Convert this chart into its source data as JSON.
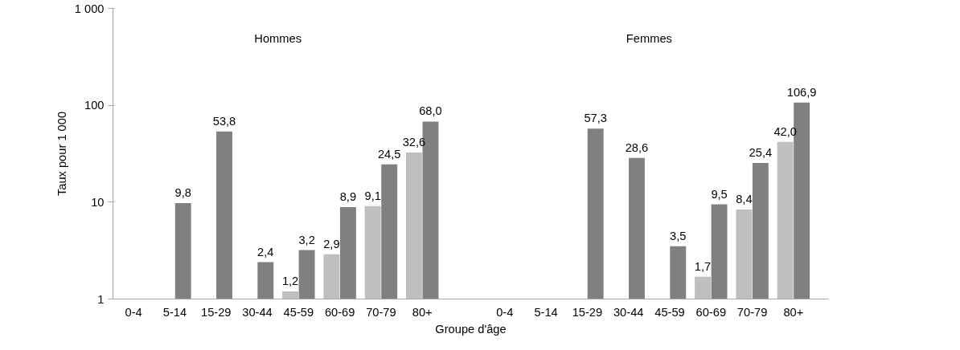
{
  "chart_data": {
    "type": "bar",
    "ylabel": "Taux pour 1 000",
    "xlabel": "Groupe d'âge",
    "categories": [
      "0-4",
      "5-14",
      "15-29",
      "30-44",
      "45-59",
      "60-69",
      "70-79",
      "80+",
      null,
      "0-4",
      "5-14",
      "15-29",
      "30-44",
      "45-59",
      "60-69",
      "70-79",
      "80+"
    ],
    "series": [
      {
        "color": "#bfbfbf",
        "values": [
          null,
          null,
          null,
          null,
          1.2,
          2.9,
          9.1,
          32.6,
          null,
          null,
          null,
          null,
          null,
          null,
          1.7,
          8.4,
          42.0
        ],
        "value_labels": [
          null,
          null,
          null,
          null,
          "1,2",
          "2,9",
          "9,1",
          "32,6",
          null,
          null,
          null,
          null,
          null,
          null,
          "1,7",
          "8,4",
          "42,0"
        ]
      },
      {
        "color": "#808080",
        "values": [
          null,
          9.8,
          53.8,
          2.4,
          3.2,
          8.9,
          24.5,
          68.0,
          null,
          null,
          null,
          57.3,
          28.6,
          3.5,
          9.5,
          25.4,
          106.9
        ],
        "value_labels": [
          null,
          "9,8",
          "53,8",
          "2,4",
          "3,2",
          "8,9",
          "24,5",
          "68,0",
          null,
          null,
          null,
          "57,3",
          "28,6",
          "3,5",
          "9,5",
          "25,4",
          "106,9"
        ]
      }
    ],
    "log": "y",
    "ylim": [
      1,
      1000
    ],
    "yticks": [
      1,
      10,
      100,
      {
        "value": 1000,
        "label": "1 000"
      }
    ],
    "annotations": [
      "Hommes",
      "Femmes"
    ],
    "grid": false
  }
}
